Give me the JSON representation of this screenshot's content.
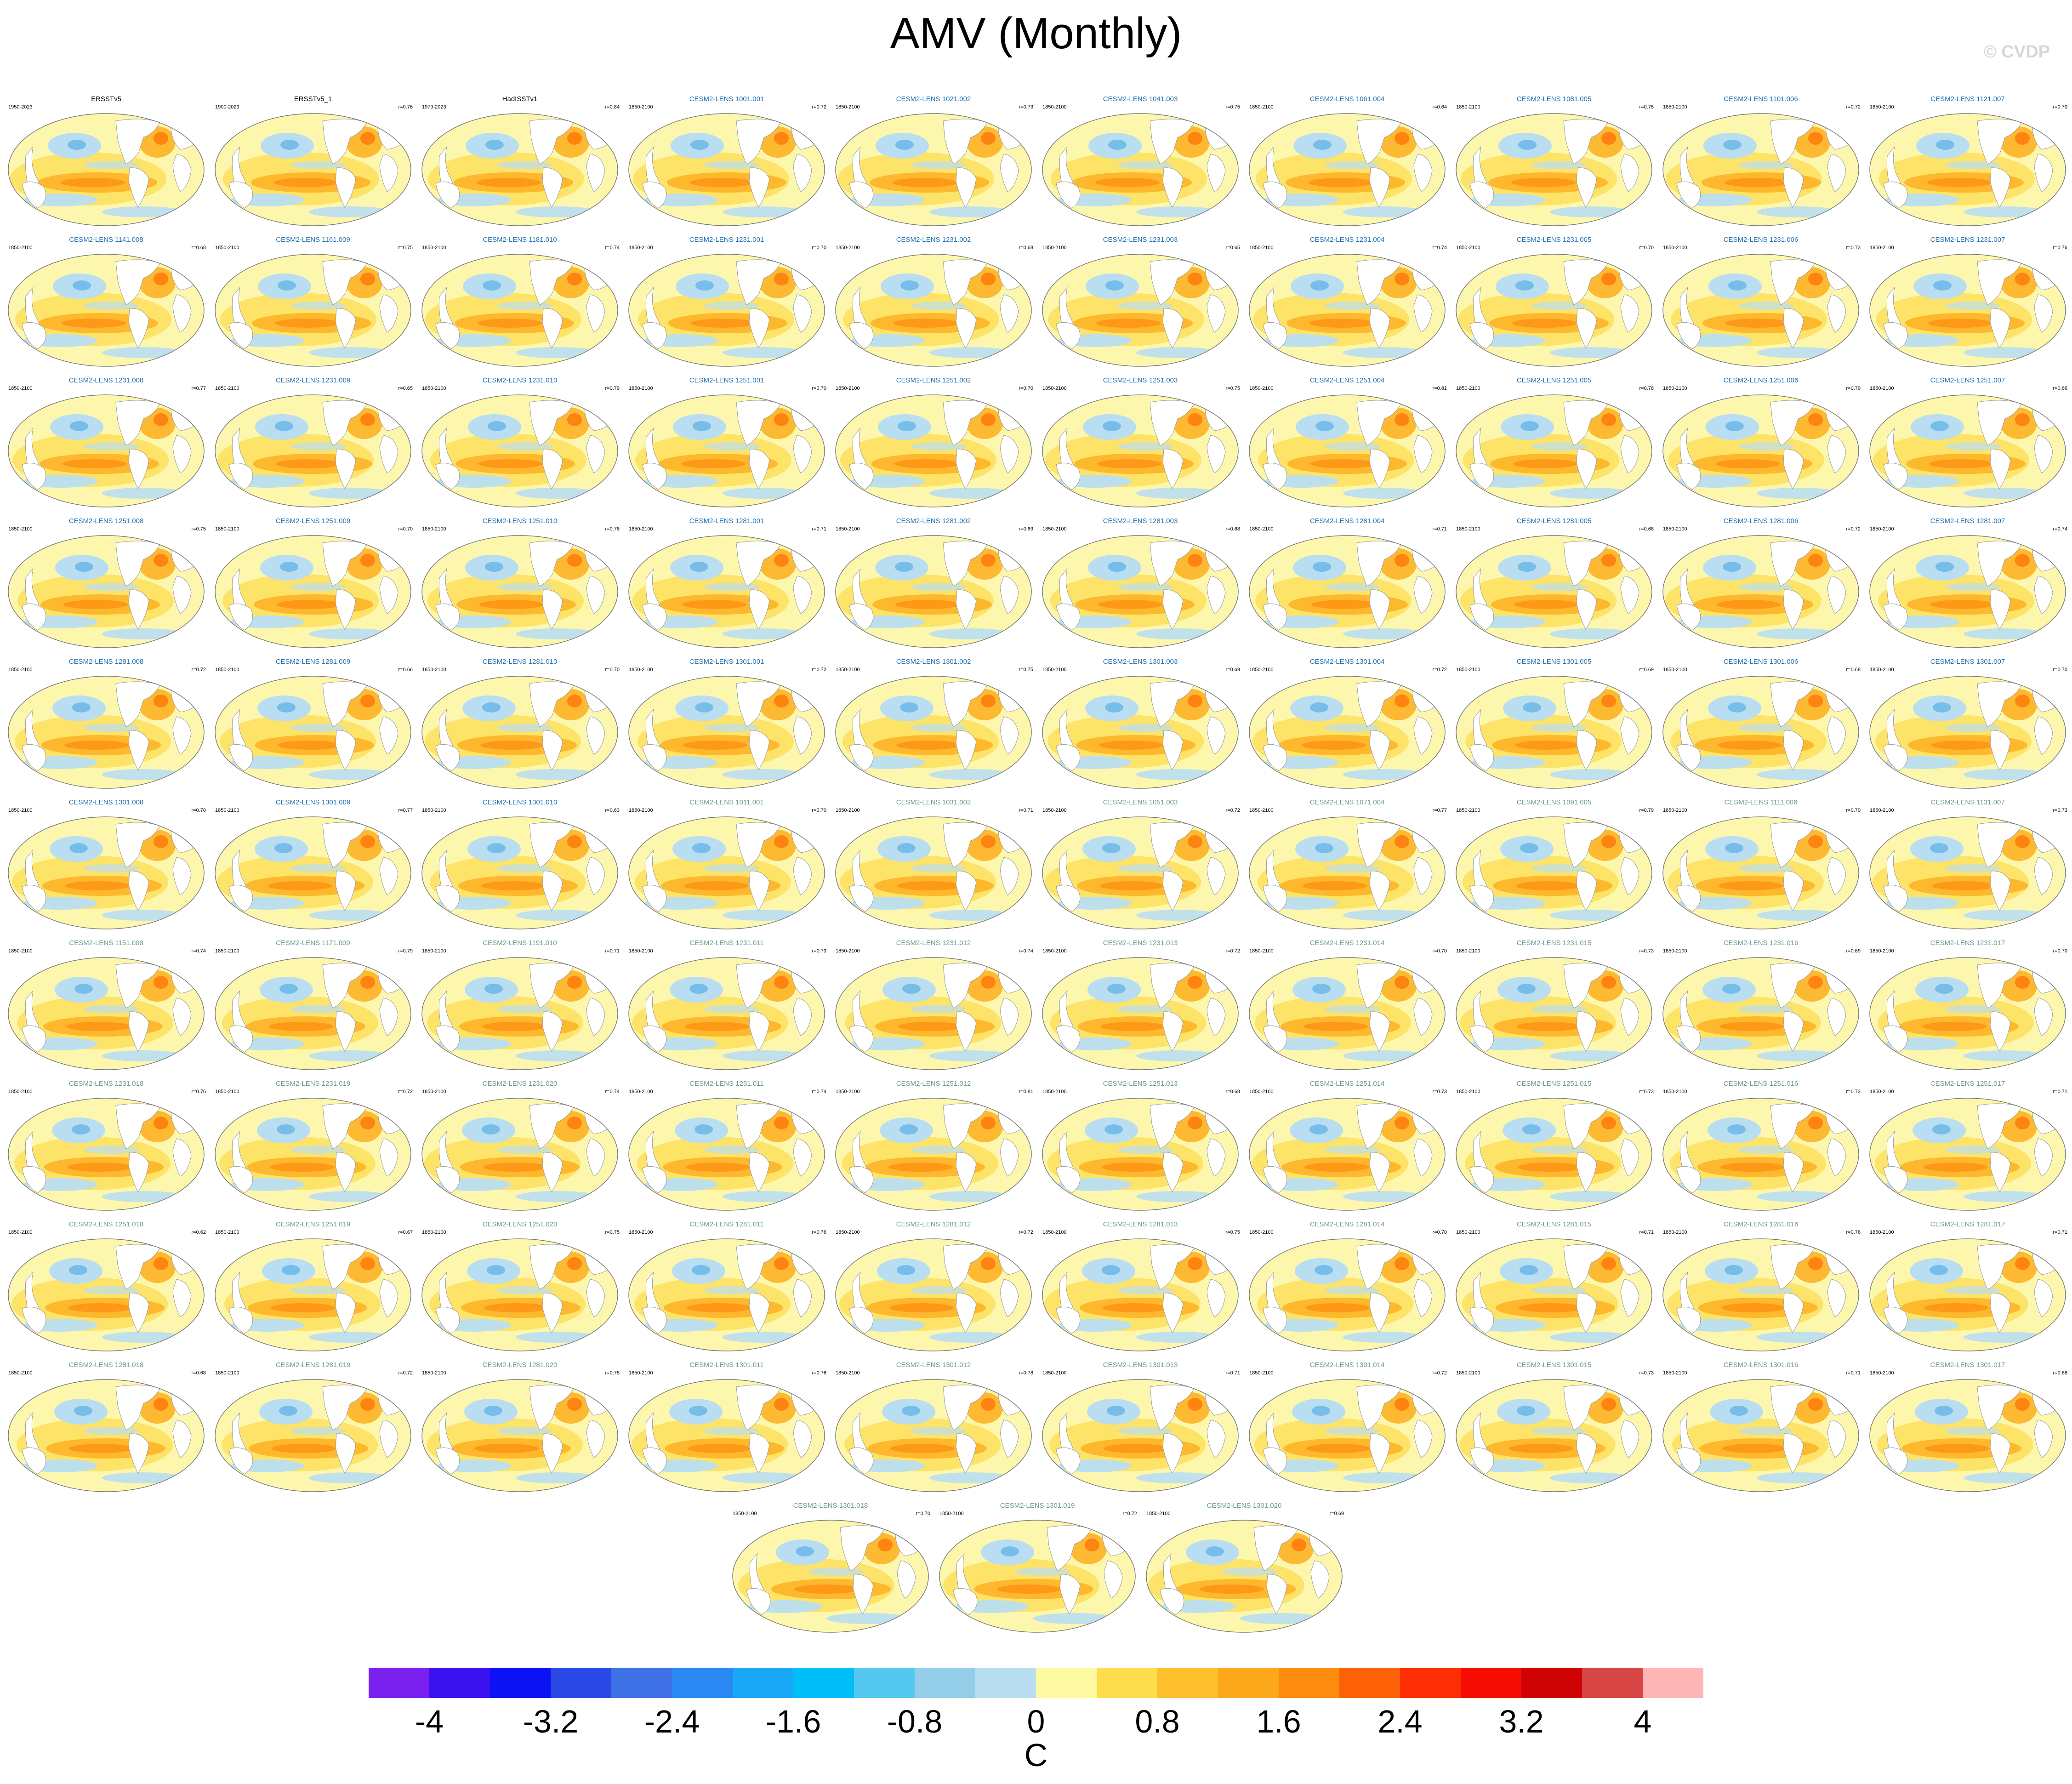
{
  "title": "AMV (Monthly)",
  "watermark": "© CVDP",
  "units": "C",
  "title_colors": {
    "observed": "#000000",
    "model_first": "#1f6fb0",
    "model_second": "#6a9a8a"
  },
  "colorbar": {
    "colors": [
      "#7a21f0",
      "#3a12f0",
      "#0d12f5",
      "#2a48e6",
      "#3e72e6",
      "#2a88f2",
      "#18a8f7",
      "#00bef8",
      "#55c8f0",
      "#93cde8",
      "#b9def2",
      "#fdf9a3",
      "#fddd4b",
      "#fdc02c",
      "#fda71b",
      "#fd8b0d",
      "#fd6108",
      "#fd2e04",
      "#f50d03",
      "#cf0303",
      "#d74545",
      "#fdb5b5"
    ],
    "tick_labels": [
      "-4",
      "-3.2",
      "-2.4",
      "-1.6",
      "-0.8",
      "0",
      "0.8",
      "1.6",
      "2.4",
      "3.2",
      "4"
    ]
  },
  "panels": [
    {
      "title": "ERSSTv5",
      "period": "1950-2023",
      "r": "",
      "group": "observed"
    },
    {
      "title": "ERSSTv5_1",
      "period": "1900-2023",
      "r": "r=0.76",
      "group": "observed"
    },
    {
      "title": "HadISSTv1",
      "period": "1979-2023",
      "r": "r=0.84",
      "group": "observed"
    },
    {
      "title": "CESM2-LENS 1001.001",
      "period": "1850-2100",
      "r": "r=0.72",
      "group": "model_first"
    },
    {
      "title": "CESM2-LENS 1021.002",
      "period": "1850-2100",
      "r": "r=0.73",
      "group": "model_first"
    },
    {
      "title": "CESM2-LENS 1041.003",
      "period": "1850-2100",
      "r": "r=0.75",
      "group": "model_first"
    },
    {
      "title": "CESM2-LENS 1061.004",
      "period": "1850-2100",
      "r": "r=0.64",
      "group": "model_first"
    },
    {
      "title": "CESM2-LENS 1081.005",
      "period": "1850-2100",
      "r": "r=0.75",
      "group": "model_first"
    },
    {
      "title": "CESM2-LENS 1101.006",
      "period": "1850-2100",
      "r": "r=0.72",
      "group": "model_first"
    },
    {
      "title": "CESM2-LENS 1121.007",
      "period": "1850-2100",
      "r": "r=0.70",
      "group": "model_first"
    },
    {
      "title": "CESM2-LENS 1141.008",
      "period": "1850-2100",
      "r": "r=0.68",
      "group": "model_first"
    },
    {
      "title": "CESM2-LENS 1161.009",
      "period": "1850-2100",
      "r": "r=0.75",
      "group": "model_first"
    },
    {
      "title": "CESM2-LENS 1181.010",
      "period": "1850-2100",
      "r": "r=0.74",
      "group": "model_first"
    },
    {
      "title": "CESM2-LENS 1231.001",
      "period": "1850-2100",
      "r": "r=0.70",
      "group": "model_first"
    },
    {
      "title": "CESM2-LENS 1231.002",
      "period": "1850-2100",
      "r": "r=0.68",
      "group": "model_first"
    },
    {
      "title": "CESM2-LENS 1231.003",
      "period": "1850-2100",
      "r": "r=0.65",
      "group": "model_first"
    },
    {
      "title": "CESM2-LENS 1231.004",
      "period": "1850-2100",
      "r": "r=0.74",
      "group": "model_first"
    },
    {
      "title": "CESM2-LENS 1231.005",
      "period": "1850-2100",
      "r": "r=0.70",
      "group": "model_first"
    },
    {
      "title": "CESM2-LENS 1231.006",
      "period": "1850-2100",
      "r": "r=0.73",
      "group": "model_first"
    },
    {
      "title": "CESM2-LENS 1231.007",
      "period": "1850-2100",
      "r": "r=0.76",
      "group": "model_first"
    },
    {
      "title": "CESM2-LENS 1231.008",
      "period": "1850-2100",
      "r": "r=0.77",
      "group": "model_first"
    },
    {
      "title": "CESM2-LENS 1231.009",
      "period": "1850-2100",
      "r": "r=0.65",
      "group": "model_first"
    },
    {
      "title": "CESM2-LENS 1231.010",
      "period": "1850-2100",
      "r": "r=0.79",
      "group": "model_first"
    },
    {
      "title": "CESM2-LENS 1251.001",
      "period": "1850-2100",
      "r": "r=0.70",
      "group": "model_first"
    },
    {
      "title": "CESM2-LENS 1251.002",
      "period": "1850-2100",
      "r": "r=0.70",
      "group": "model_first"
    },
    {
      "title": "CESM2-LENS 1251.003",
      "period": "1850-2100",
      "r": "r=0.75",
      "group": "model_first"
    },
    {
      "title": "CESM2-LENS 1251.004",
      "period": "1850-2100",
      "r": "r=0.81",
      "group": "model_first"
    },
    {
      "title": "CESM2-LENS 1251.005",
      "period": "1850-2100",
      "r": "r=0.78",
      "group": "model_first"
    },
    {
      "title": "CESM2-LENS 1251.006",
      "period": "1850-2100",
      "r": "r=0.79",
      "group": "model_first"
    },
    {
      "title": "CESM2-LENS 1251.007",
      "period": "1850-2100",
      "r": "r=0.66",
      "group": "model_first"
    },
    {
      "title": "CESM2-LENS 1251.008",
      "period": "1850-2100",
      "r": "r=0.75",
      "group": "model_first"
    },
    {
      "title": "CESM2-LENS 1251.009",
      "period": "1850-2100",
      "r": "r=0.70",
      "group": "model_first"
    },
    {
      "title": "CESM2-LENS 1251.010",
      "period": "1850-2100",
      "r": "r=0.78",
      "group": "model_first"
    },
    {
      "title": "CESM2-LENS 1281.001",
      "period": "1850-2100",
      "r": "r=0.71",
      "group": "model_first"
    },
    {
      "title": "CESM2-LENS 1281.002",
      "period": "1850-2100",
      "r": "r=0.69",
      "group": "model_first"
    },
    {
      "title": "CESM2-LENS 1281.003",
      "period": "1850-2100",
      "r": "r=0.68",
      "group": "model_first"
    },
    {
      "title": "CESM2-LENS 1281.004",
      "period": "1850-2100",
      "r": "r=0.71",
      "group": "model_first"
    },
    {
      "title": "CESM2-LENS 1281.005",
      "period": "1850-2100",
      "r": "r=0.68",
      "group": "model_first"
    },
    {
      "title": "CESM2-LENS 1281.006",
      "period": "1850-2100",
      "r": "r=0.72",
      "group": "model_first"
    },
    {
      "title": "CESM2-LENS 1281.007",
      "period": "1850-2100",
      "r": "r=0.74",
      "group": "model_first"
    },
    {
      "title": "CESM2-LENS 1281.008",
      "period": "1850-2100",
      "r": "r=0.72",
      "group": "model_first"
    },
    {
      "title": "CESM2-LENS 1281.009",
      "period": "1850-2100",
      "r": "r=0.66",
      "group": "model_first"
    },
    {
      "title": "CESM2-LENS 1281.010",
      "period": "1850-2100",
      "r": "r=0.70",
      "group": "model_first"
    },
    {
      "title": "CESM2-LENS 1301.001",
      "period": "1850-2100",
      "r": "r=0.72",
      "group": "model_first"
    },
    {
      "title": "CESM2-LENS 1301.002",
      "period": "1850-2100",
      "r": "r=0.75",
      "group": "model_first"
    },
    {
      "title": "CESM2-LENS 1301.003",
      "period": "1850-2100",
      "r": "r=0.69",
      "group": "model_first"
    },
    {
      "title": "CESM2-LENS 1301.004",
      "period": "1850-2100",
      "r": "r=0.72",
      "group": "model_first"
    },
    {
      "title": "CESM2-LENS 1301.005",
      "period": "1850-2100",
      "r": "r=0.69",
      "group": "model_first"
    },
    {
      "title": "CESM2-LENS 1301.006",
      "period": "1850-2100",
      "r": "r=0.68",
      "group": "model_first"
    },
    {
      "title": "CESM2-LENS 1301.007",
      "period": "1850-2100",
      "r": "r=0.70",
      "group": "model_first"
    },
    {
      "title": "CESM2-LENS 1301.008",
      "period": "1850-2100",
      "r": "r=0.70",
      "group": "model_first"
    },
    {
      "title": "CESM2-LENS 1301.009",
      "period": "1850-2100",
      "r": "r=0.77",
      "group": "model_first"
    },
    {
      "title": "CESM2-LENS 1301.010",
      "period": "1850-2100",
      "r": "r=0.63",
      "group": "model_first"
    },
    {
      "title": "CESM2-LENS 1011.001",
      "period": "1850-2100",
      "r": "r=0.70",
      "group": "model_second"
    },
    {
      "title": "CESM2-LENS 1031.002",
      "period": "1850-2100",
      "r": "r=0.71",
      "group": "model_second"
    },
    {
      "title": "CESM2-LENS 1051.003",
      "period": "1850-2100",
      "r": "r=0.72",
      "group": "model_second"
    },
    {
      "title": "CESM2-LENS 1071.004",
      "period": "1850-2100",
      "r": "r=0.77",
      "group": "model_second"
    },
    {
      "title": "CESM2-LENS 1091.005",
      "period": "1850-2100",
      "r": "r=0.79",
      "group": "model_second"
    },
    {
      "title": "CESM2-LENS 1111.006",
      "period": "1850-2100",
      "r": "r=0.70",
      "group": "model_second"
    },
    {
      "title": "CESM2-LENS 1131.007",
      "period": "1850-2100",
      "r": "r=0.73",
      "group": "model_second"
    },
    {
      "title": "CESM2-LENS 1151.008",
      "period": "1850-2100",
      "r": "r=0.74",
      "group": "model_second"
    },
    {
      "title": "CESM2-LENS 1171.009",
      "period": "1850-2100",
      "r": "r=0.79",
      "group": "model_second"
    },
    {
      "title": "CESM2-LENS 1191.010",
      "period": "1850-2100",
      "r": "r=0.71",
      "group": "model_second"
    },
    {
      "title": "CESM2-LENS 1231.011",
      "period": "1850-2100",
      "r": "r=0.73",
      "group": "model_second"
    },
    {
      "title": "CESM2-LENS 1231.012",
      "period": "1850-2100",
      "r": "r=0.74",
      "group": "model_second"
    },
    {
      "title": "CESM2-LENS 1231.013",
      "period": "1850-2100",
      "r": "r=0.72",
      "group": "model_second"
    },
    {
      "title": "CESM2-LENS 1231.014",
      "period": "1850-2100",
      "r": "r=0.70",
      "group": "model_second"
    },
    {
      "title": "CESM2-LENS 1231.015",
      "period": "1850-2100",
      "r": "r=0.73",
      "group": "model_second"
    },
    {
      "title": "CESM2-LENS 1231.016",
      "period": "1850-2100",
      "r": "r=0.69",
      "group": "model_second"
    },
    {
      "title": "CESM2-LENS 1231.017",
      "period": "1850-2100",
      "r": "r=0.70",
      "group": "model_second"
    },
    {
      "title": "CESM2-LENS 1231.018",
      "period": "1850-2100",
      "r": "r=0.76",
      "group": "model_second"
    },
    {
      "title": "CESM2-LENS 1231.019",
      "period": "1850-2100",
      "r": "r=0.72",
      "group": "model_second"
    },
    {
      "title": "CESM2-LENS 1231.020",
      "period": "1850-2100",
      "r": "r=0.74",
      "group": "model_second"
    },
    {
      "title": "CESM2-LENS 1251.011",
      "period": "1850-2100",
      "r": "r=0.74",
      "group": "model_second"
    },
    {
      "title": "CESM2-LENS 1251.012",
      "period": "1850-2100",
      "r": "r=0.81",
      "group": "model_second"
    },
    {
      "title": "CESM2-LENS 1251.013",
      "period": "1850-2100",
      "r": "r=0.68",
      "group": "model_second"
    },
    {
      "title": "CESM2-LENS 1251.014",
      "period": "1850-2100",
      "r": "r=0.73",
      "group": "model_second"
    },
    {
      "title": "CESM2-LENS 1251.015",
      "period": "1850-2100",
      "r": "r=0.73",
      "group": "model_second"
    },
    {
      "title": "CESM2-LENS 1251.016",
      "period": "1850-2100",
      "r": "r=0.73",
      "group": "model_second"
    },
    {
      "title": "CESM2-LENS 1251.017",
      "period": "1850-2100",
      "r": "r=0.71",
      "group": "model_second"
    },
    {
      "title": "CESM2-LENS 1251.018",
      "period": "1850-2100",
      "r": "r=0.62",
      "group": "model_second"
    },
    {
      "title": "CESM2-LENS 1251.019",
      "period": "1850-2100",
      "r": "r=0.67",
      "group": "model_second"
    },
    {
      "title": "CESM2-LENS 1251.020",
      "period": "1850-2100",
      "r": "r=0.75",
      "group": "model_second"
    },
    {
      "title": "CESM2-LENS 1281.011",
      "period": "1850-2100",
      "r": "r=0.76",
      "group": "model_second"
    },
    {
      "title": "CESM2-LENS 1281.012",
      "period": "1850-2100",
      "r": "r=0.72",
      "group": "model_second"
    },
    {
      "title": "CESM2-LENS 1281.013",
      "period": "1850-2100",
      "r": "r=0.75",
      "group": "model_second"
    },
    {
      "title": "CESM2-LENS 1281.014",
      "period": "1850-2100",
      "r": "r=0.70",
      "group": "model_second"
    },
    {
      "title": "CESM2-LENS 1281.015",
      "period": "1850-2100",
      "r": "r=0.71",
      "group": "model_second"
    },
    {
      "title": "CESM2-LENS 1281.016",
      "period": "1850-2100",
      "r": "r=0.76",
      "group": "model_second"
    },
    {
      "title": "CESM2-LENS 1281.017",
      "period": "1850-2100",
      "r": "r=0.71",
      "group": "model_second"
    },
    {
      "title": "CESM2-LENS 1281.018",
      "period": "1850-2100",
      "r": "r=0.68",
      "group": "model_second"
    },
    {
      "title": "CESM2-LENS 1281.019",
      "period": "1850-2100",
      "r": "r=0.72",
      "group": "model_second"
    },
    {
      "title": "CESM2-LENS 1281.020",
      "period": "1850-2100",
      "r": "r=0.78",
      "group": "model_second"
    },
    {
      "title": "CESM2-LENS 1301.011",
      "period": "1850-2100",
      "r": "r=0.76",
      "group": "model_second"
    },
    {
      "title": "CESM2-LENS 1301.012",
      "period": "1850-2100",
      "r": "r=0.78",
      "group": "model_second"
    },
    {
      "title": "CESM2-LENS 1301.013",
      "period": "1850-2100",
      "r": "r=0.71",
      "group": "model_second"
    },
    {
      "title": "CESM2-LENS 1301.014",
      "period": "1850-2100",
      "r": "r=0.72",
      "group": "model_second"
    },
    {
      "title": "CESM2-LENS 1301.015",
      "period": "1850-2100",
      "r": "r=0.73",
      "group": "model_second"
    },
    {
      "title": "CESM2-LENS 1301.016",
      "period": "1850-2100",
      "r": "r=0.71",
      "group": "model_second"
    },
    {
      "title": "CESM2-LENS 1301.017",
      "period": "1850-2100",
      "r": "r=0.68",
      "group": "model_second"
    },
    {
      "title": "CESM2-LENS 1301.018",
      "period": "1850-2100",
      "r": "r=0.70",
      "group": "model_second"
    },
    {
      "title": "CESM2-LENS 1301.019",
      "period": "1850-2100",
      "r": "r=0.72",
      "group": "model_second"
    },
    {
      "title": "CESM2-LENS 1301.020",
      "period": "1850-2100",
      "r": "r=0.69",
      "group": "model_second"
    }
  ]
}
